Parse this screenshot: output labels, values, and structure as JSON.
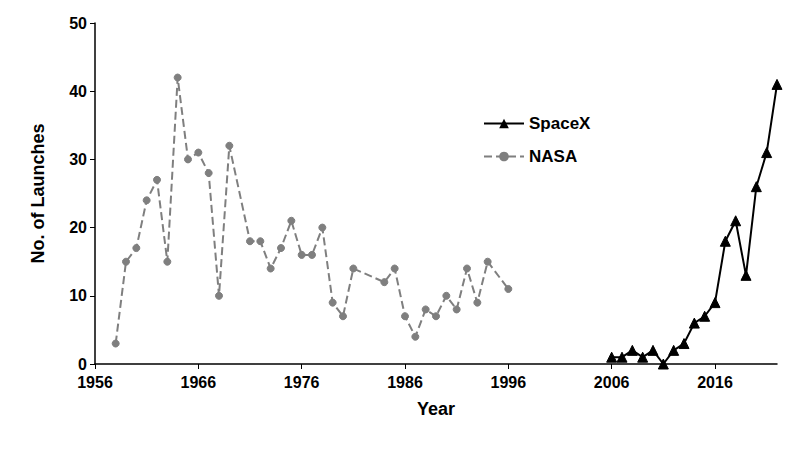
{
  "chart_data": {
    "type": "line",
    "x_label": "Year",
    "y_label": "No. of Launches",
    "xlim": [
      1956,
      2022
    ],
    "xticks": [
      1956,
      1966,
      1976,
      1986,
      1996,
      2006,
      2016
    ],
    "ylim": [
      0,
      50
    ],
    "yticks": [
      0,
      10,
      20,
      30,
      40,
      50
    ],
    "grid": false,
    "legend": "upper center",
    "series": [
      {
        "name": "SpaceX",
        "color": "#000000",
        "marker": "triangle",
        "line_style": "solid",
        "x": [
          2006,
          2007,
          2008,
          2009,
          2010,
          2011,
          2012,
          2013,
          2014,
          2015,
          2016,
          2017,
          2018,
          2019,
          2020,
          2021,
          2022
        ],
        "values": [
          1,
          1,
          2,
          1,
          2,
          0,
          2,
          3,
          6,
          7,
          9,
          18,
          21,
          13,
          26,
          31,
          41
        ]
      },
      {
        "name": "NASA",
        "color": "#7f7f7f",
        "marker": "circle",
        "line_style": "dashed",
        "x": [
          1958,
          1959,
          1960,
          1961,
          1962,
          1963,
          1964,
          1965,
          1966,
          1967,
          1968,
          1969,
          1971,
          1972,
          1973,
          1974,
          1975,
          1976,
          1977,
          1978,
          1979,
          1980,
          1981,
          1984,
          1985,
          1986,
          1987,
          1988,
          1989,
          1990,
          1991,
          1992,
          1993,
          1994,
          1996
        ],
        "values": [
          3,
          15,
          17,
          24,
          27,
          15,
          42,
          30,
          31,
          28,
          10,
          32,
          18,
          18,
          14,
          17,
          21,
          16,
          16,
          20,
          9,
          7,
          14,
          12,
          14,
          7,
          4,
          8,
          7,
          10,
          8,
          14,
          9,
          15,
          11
        ]
      }
    ]
  }
}
